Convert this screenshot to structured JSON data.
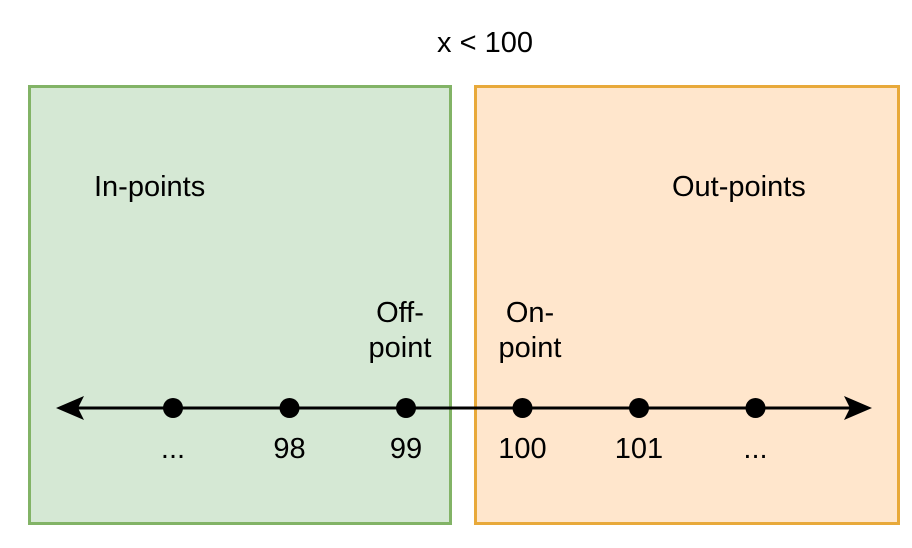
{
  "title": "x < 100",
  "regions": {
    "in": {
      "label": "In-points",
      "fill": "#d5e8d4",
      "stroke": "#82b366"
    },
    "out": {
      "label": "Out-points",
      "fill": "#ffe6cc",
      "stroke": "#e8a93a"
    }
  },
  "off_point": {
    "line1": "Off-",
    "line2": "point"
  },
  "on_point": {
    "line1": "On-",
    "line2": "point"
  },
  "number_line": {
    "points": [
      {
        "label": "..."
      },
      {
        "label": "98"
      },
      {
        "label": "99"
      },
      {
        "label": "100"
      },
      {
        "label": "101"
      },
      {
        "label": "..."
      }
    ]
  }
}
